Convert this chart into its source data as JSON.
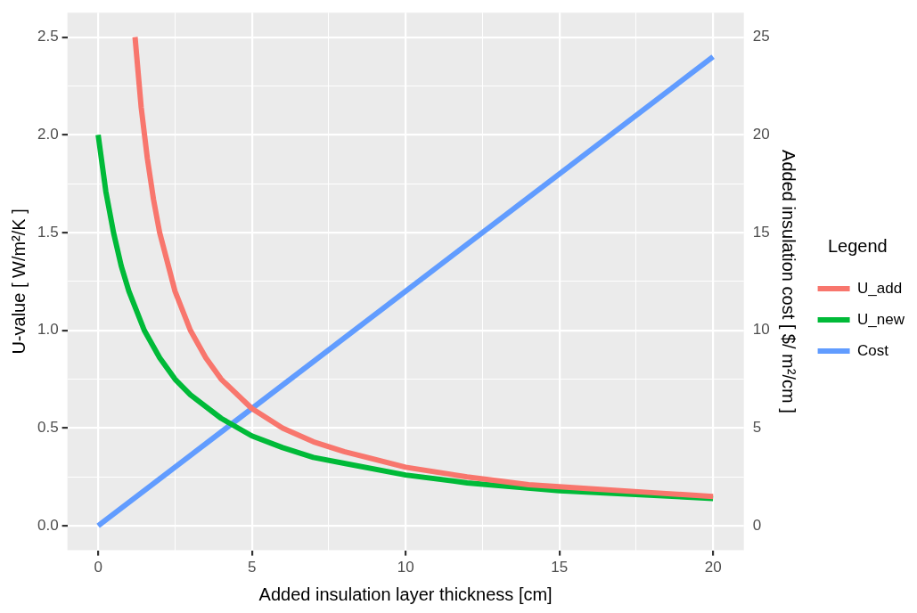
{
  "chart_data": {
    "type": "line",
    "xlabel": "Added insulation layer thickness [cm]",
    "ylabel": "U-value [ W/m²/K ]",
    "y2label": "Added insulation cost [ $/ m²/cm ]",
    "legend_title": "Legend",
    "legend": "right",
    "grid": true,
    "marker": "none",
    "line_style": "solid",
    "xlim": [
      -1,
      21
    ],
    "xticks": [
      0,
      {
        "value": 2.5,
        "label": null
      },
      5,
      {
        "value": 7.5,
        "label": null
      },
      10,
      {
        "value": 12.5,
        "label": null
      },
      15,
      {
        "value": 17.5,
        "label": null
      },
      20
    ],
    "ylim": [
      -0.125,
      2.625
    ],
    "yticks": [
      {
        "value": 0,
        "label": "0.0"
      },
      {
        "value": 0.25,
        "label": null
      },
      {
        "value": 0.5,
        "label": "0.5"
      },
      {
        "value": 0.75,
        "label": null
      },
      {
        "value": 1,
        "label": "1.0"
      },
      {
        "value": 1.25,
        "label": null
      },
      {
        "value": 1.5,
        "label": "1.5"
      },
      {
        "value": 1.75,
        "label": null
      },
      {
        "value": 2,
        "label": "2.0"
      },
      {
        "value": 2.25,
        "label": null
      },
      {
        "value": 2.5,
        "label": "2.5"
      }
    ],
    "y2lim": [
      -1.25,
      26.25
    ],
    "y2ticks": [
      0,
      5,
      10,
      15,
      20,
      25
    ],
    "series": [
      {
        "name": "U_add",
        "color": "#f8766d",
        "x": [
          1.2,
          1.4,
          1.6,
          1.8,
          2,
          2.5,
          3,
          3.5,
          4,
          5,
          6,
          7,
          8,
          10,
          12,
          14,
          16,
          18,
          20
        ],
        "values": [
          2.5,
          2.14,
          1.88,
          1.67,
          1.5,
          1.2,
          1,
          0.86,
          0.75,
          0.6,
          0.5,
          0.43,
          0.38,
          0.3,
          0.25,
          0.21,
          0.19,
          0.17,
          0.15
        ]
      },
      {
        "name": "U_new",
        "color": "#00ba38",
        "x": [
          0,
          0.25,
          0.5,
          0.75,
          1,
          1.5,
          2,
          2.5,
          3,
          4,
          5,
          6,
          7,
          8,
          10,
          12,
          15,
          20
        ],
        "values": [
          2,
          1.71,
          1.5,
          1.33,
          1.2,
          1,
          0.86,
          0.75,
          0.67,
          0.55,
          0.46,
          0.4,
          0.35,
          0.32,
          0.26,
          0.22,
          0.18,
          0.14
        ]
      },
      {
        "name": "Cost",
        "color": "#619cff",
        "axis": "y2",
        "x": [
          0,
          20
        ],
        "values": [
          0,
          24
        ]
      }
    ]
  }
}
